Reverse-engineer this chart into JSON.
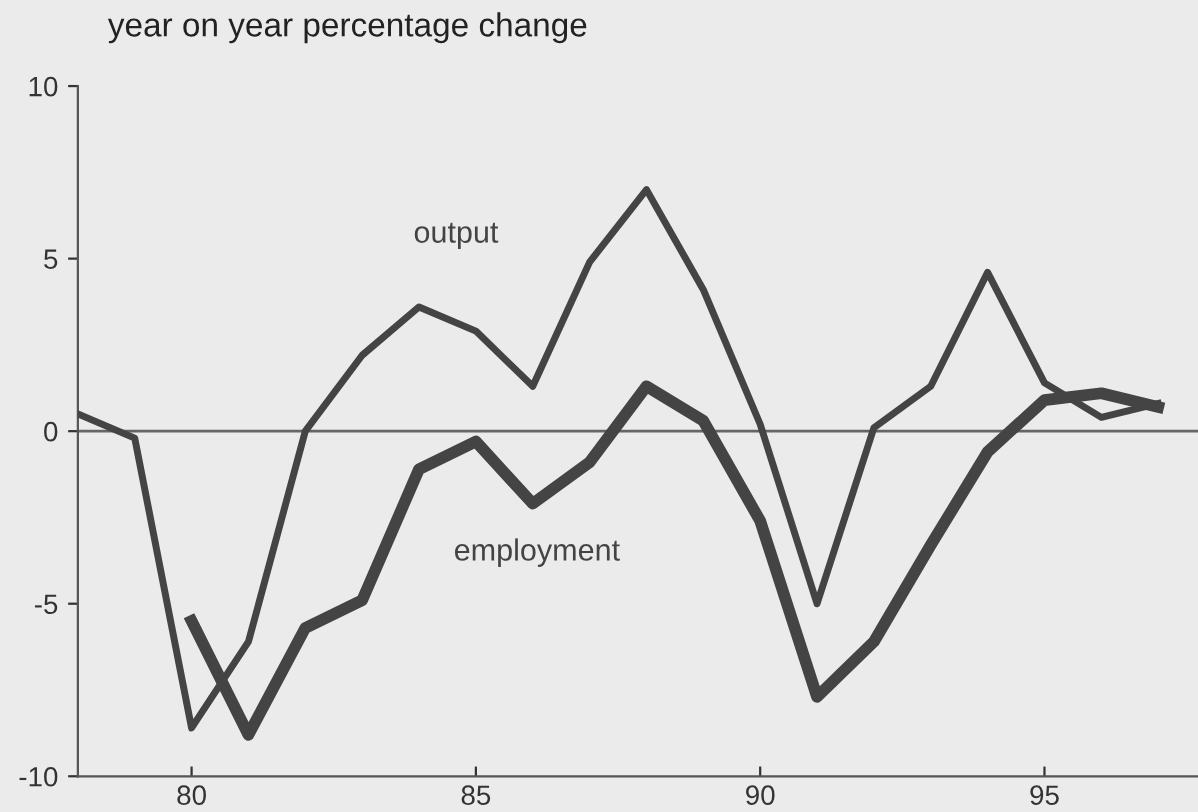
{
  "chart_data": {
    "type": "line",
    "ylabel": "year on year percentage change",
    "x": [
      78,
      79,
      80,
      81,
      82,
      83,
      84,
      85,
      86,
      87,
      88,
      89,
      90,
      91,
      92,
      93,
      94,
      95,
      96,
      97
    ],
    "series": [
      {
        "name": "output",
        "color": "#444444",
        "values": [
          0.5,
          -0.2,
          -8.6,
          -6.1,
          0,
          2.2,
          3.6,
          2.9,
          1.3,
          4.9,
          7.0,
          4.1,
          0.2,
          -5.0,
          0.1,
          1.3,
          4.6,
          1.4,
          0.4,
          0.8
        ]
      },
      {
        "name": "employment",
        "color": "#444444",
        "values": [
          null,
          null,
          -5.5,
          -8.8,
          -5.7,
          -4.9,
          -1.1,
          -0.3,
          -2.1,
          -0.9,
          1.3,
          0.3,
          -2.6,
          -7.7,
          -6.1,
          -3.3,
          -0.6,
          0.9,
          1.1,
          0.7
        ]
      }
    ],
    "ref_lines": [
      {
        "axis": "y",
        "value": 0,
        "color": "#666666"
      }
    ],
    "xlim": [
      78,
      97.7
    ],
    "xticks": [
      80,
      85,
      90,
      95
    ],
    "ylim": [
      -10,
      10
    ],
    "yticks": [
      -10,
      -5,
      0,
      5,
      10
    ],
    "grid": false,
    "legend": false,
    "marker": "none",
    "line_style": "solid"
  }
}
